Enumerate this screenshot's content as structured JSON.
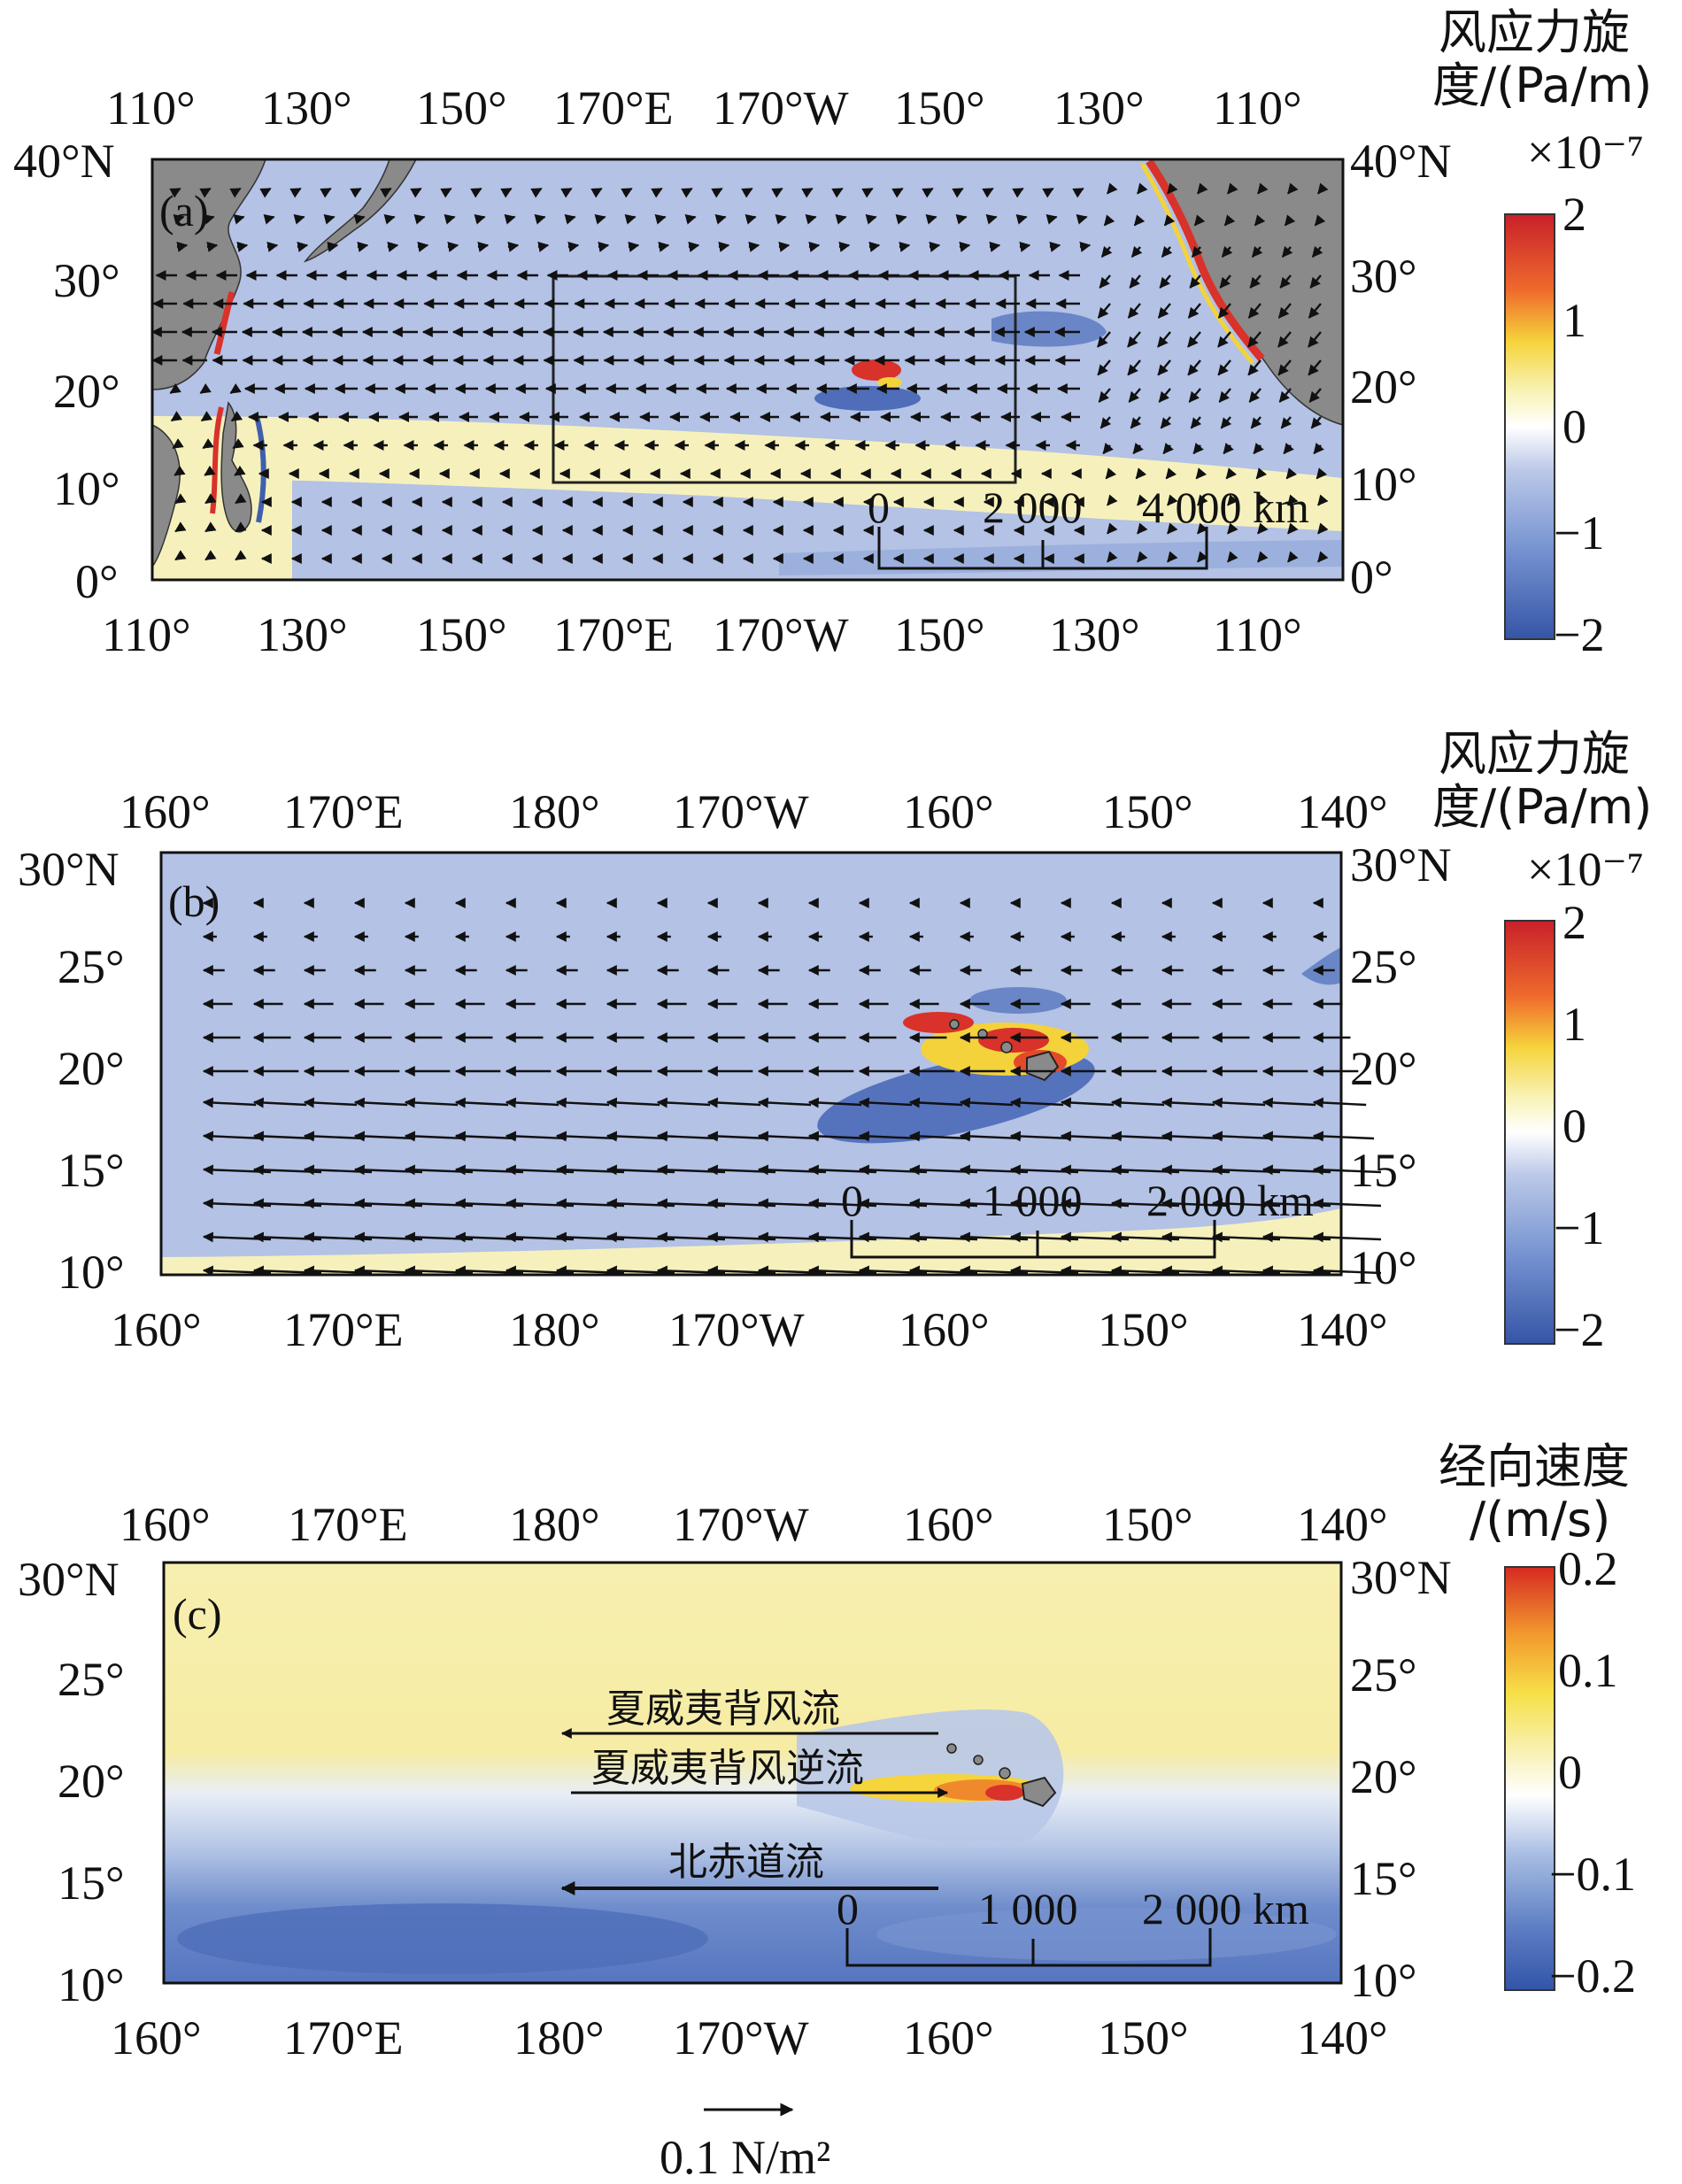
{
  "panels": [
    {
      "id": "a",
      "tag": "(a)",
      "top_ticks": [
        "110°",
        "130°",
        "150°",
        "170°E",
        "170°W",
        "150°",
        "130°",
        "110°"
      ],
      "bottom_ticks": [
        "110°",
        "130°",
        "150°",
        "170°E",
        "170°W",
        "150°",
        "130°",
        "110°"
      ],
      "left_ticks": [
        "40°N",
        "30°",
        "20°",
        "10°",
        "0°"
      ],
      "right_ticks": [
        "40°N",
        "30°",
        "20°",
        "10°",
        "0°"
      ],
      "scale": [
        "0",
        "2 000",
        "4 000 km"
      ],
      "colorbar": {
        "title_line1": "风应力旋",
        "title_line2": "度/(Pa/m)",
        "multiplier": "×10⁻⁷",
        "ticks": [
          "2",
          "1",
          "0",
          "−1",
          "−2"
        ]
      }
    },
    {
      "id": "b",
      "tag": "(b)",
      "top_ticks": [
        "160°",
        "170°E",
        "180°",
        "170°W",
        "160°",
        "150°",
        "140°"
      ],
      "bottom_ticks": [
        "160°",
        "170°E",
        "180°",
        "170°W",
        "160°",
        "150°",
        "140°"
      ],
      "left_ticks": [
        "30°N",
        "25°",
        "20°",
        "15°",
        "10°"
      ],
      "right_ticks": [
        "30°N",
        "25°",
        "20°",
        "15°",
        "10°"
      ],
      "scale": [
        "0",
        "1 000",
        "2 000 km"
      ],
      "colorbar": {
        "title_line1": "风应力旋",
        "title_line2": "度/(Pa/m)",
        "multiplier": "×10⁻⁷",
        "ticks": [
          "2",
          "1",
          "0",
          "−1",
          "−2"
        ]
      }
    },
    {
      "id": "c",
      "tag": "(c)",
      "top_ticks": [
        "160°",
        "170°E",
        "180°",
        "170°W",
        "160°",
        "150°",
        "140°"
      ],
      "bottom_ticks": [
        "160°",
        "170°E",
        "180°",
        "170°W",
        "160°",
        "150°",
        "140°"
      ],
      "left_ticks": [
        "30°N",
        "25°",
        "20°",
        "15°",
        "10°"
      ],
      "right_ticks": [
        "30°N",
        "25°",
        "20°",
        "15°",
        "10°"
      ],
      "scale": [
        "0",
        "1 000",
        "2 000 km"
      ],
      "colorbar": {
        "title_line1": "经向速度",
        "title_line2": "/(m/s)",
        "ticks": [
          "0.2",
          "0.1",
          "0",
          "−0.1",
          "−0.2"
        ]
      },
      "annotations": {
        "hlc": "夏威夷背风流",
        "hlcc": "夏威夷背风逆流",
        "nec": "北赤道流"
      }
    }
  ],
  "reference_vector": {
    "label": "0.1 N/m²"
  },
  "colors": {
    "ocean_neg": "#8fa6d6",
    "ocean_pos": "#f7f3b5",
    "land": "#8a8a8a",
    "strong_neg": "#3f5fae",
    "strong_pos": "#d83a22"
  }
}
